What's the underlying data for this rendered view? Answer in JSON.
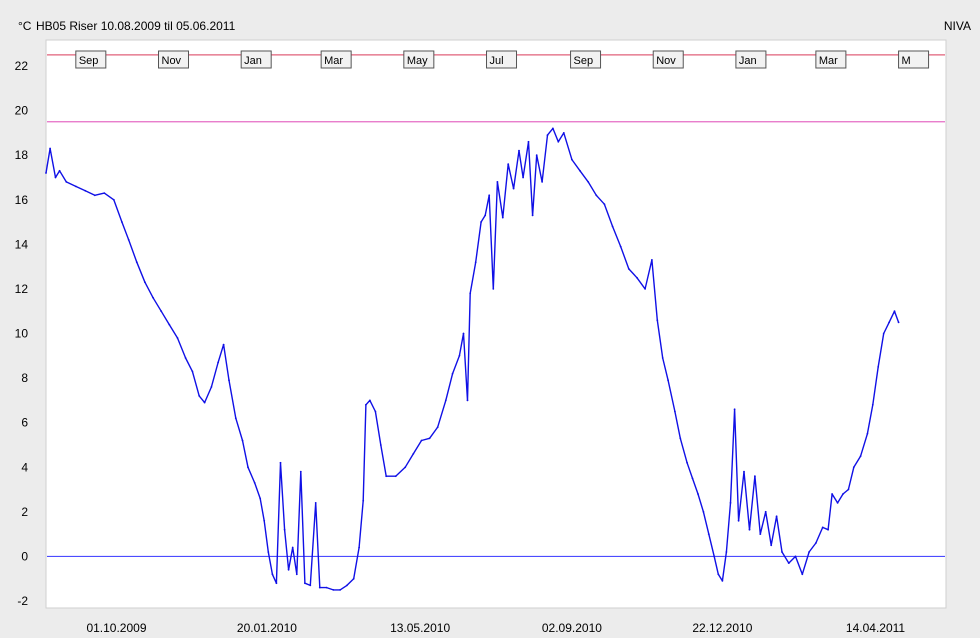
{
  "header": {
    "unit": "°C",
    "title": "HB05 Riser  10.08.2009 til 05.06.2011",
    "source": "NIVA"
  },
  "chart_data": {
    "type": "line",
    "title": "HB05 Riser  10.08.2009 til 05.06.2011",
    "ylabel": "°C",
    "xlabel": "",
    "xlim": [
      "2009-08-10",
      "2011-06-05"
    ],
    "ylim": [
      -2,
      22.5
    ],
    "y_ticks": [
      -2,
      0,
      2,
      4,
      6,
      8,
      10,
      12,
      14,
      16,
      18,
      20,
      22
    ],
    "x_tick_labels": [
      {
        "date": "2009-10-01",
        "label": "01.10.2009"
      },
      {
        "date": "2010-01-20",
        "label": "20.01.2010"
      },
      {
        "date": "2010-05-13",
        "label": "13.05.2010"
      },
      {
        "date": "2010-09-02",
        "label": "02.09.2010"
      },
      {
        "date": "2010-12-22",
        "label": "22.12.2010"
      },
      {
        "date": "2011-04-14",
        "label": "14.04.2011"
      }
    ],
    "month_markers": [
      {
        "date": "2009-09-01",
        "label": "Sep"
      },
      {
        "date": "2009-11-01",
        "label": "Nov"
      },
      {
        "date": "2010-01-01",
        "label": "Jan"
      },
      {
        "date": "2010-03-01",
        "label": "Mar"
      },
      {
        "date": "2010-05-01",
        "label": "May"
      },
      {
        "date": "2010-07-01",
        "label": "Jul"
      },
      {
        "date": "2010-09-01",
        "label": "Sep"
      },
      {
        "date": "2010-11-01",
        "label": "Nov"
      },
      {
        "date": "2011-01-01",
        "label": "Jan"
      },
      {
        "date": "2011-03-01",
        "label": "Mar"
      },
      {
        "date": "2011-05-01",
        "label": "M"
      }
    ],
    "reference_lines": [
      {
        "y": 22.5,
        "color": "#e0607a"
      },
      {
        "y": 19.5,
        "color": "#e46cc4"
      },
      {
        "y": 0,
        "color": "#4c4cff"
      }
    ],
    "series": [
      {
        "color": "#1010e6",
        "points": [
          [
            "2009-08-10",
            17.2
          ],
          [
            "2009-08-13",
            18.3
          ],
          [
            "2009-08-17",
            17.0
          ],
          [
            "2009-08-20",
            17.3
          ],
          [
            "2009-08-25",
            16.8
          ],
          [
            "2009-09-01",
            16.6
          ],
          [
            "2009-09-08",
            16.4
          ],
          [
            "2009-09-15",
            16.2
          ],
          [
            "2009-09-22",
            16.3
          ],
          [
            "2009-09-29",
            16.0
          ],
          [
            "2009-10-05",
            15.0
          ],
          [
            "2009-10-10",
            14.2
          ],
          [
            "2009-10-16",
            13.2
          ],
          [
            "2009-10-22",
            12.3
          ],
          [
            "2009-10-28",
            11.6
          ],
          [
            "2009-11-03",
            11.0
          ],
          [
            "2009-11-09",
            10.4
          ],
          [
            "2009-11-15",
            9.8
          ],
          [
            "2009-11-21",
            8.9
          ],
          [
            "2009-11-26",
            8.3
          ],
          [
            "2009-12-01",
            7.2
          ],
          [
            "2009-12-05",
            6.9
          ],
          [
            "2009-12-10",
            7.6
          ],
          [
            "2009-12-15",
            8.7
          ],
          [
            "2009-12-19",
            9.5
          ],
          [
            "2009-12-23",
            7.9
          ],
          [
            "2009-12-28",
            6.2
          ],
          [
            "2010-01-02",
            5.2
          ],
          [
            "2010-01-06",
            4.0
          ],
          [
            "2010-01-11",
            3.3
          ],
          [
            "2010-01-15",
            2.6
          ],
          [
            "2010-01-18",
            1.6
          ],
          [
            "2010-01-21",
            0.2
          ],
          [
            "2010-01-24",
            -0.8
          ],
          [
            "2010-01-27",
            -1.2
          ],
          [
            "2010-01-30",
            4.2
          ],
          [
            "2010-02-02",
            1.2
          ],
          [
            "2010-02-05",
            -0.6
          ],
          [
            "2010-02-08",
            0.4
          ],
          [
            "2010-02-11",
            -0.8
          ],
          [
            "2010-02-14",
            3.8
          ],
          [
            "2010-02-17",
            -1.2
          ],
          [
            "2010-02-21",
            -1.3
          ],
          [
            "2010-02-25",
            2.4
          ],
          [
            "2010-02-28",
            -1.4
          ],
          [
            "2010-03-05",
            -1.4
          ],
          [
            "2010-03-10",
            -1.5
          ],
          [
            "2010-03-15",
            -1.5
          ],
          [
            "2010-03-20",
            -1.3
          ],
          [
            "2010-03-25",
            -1.0
          ],
          [
            "2010-03-29",
            0.4
          ],
          [
            "2010-04-01",
            2.5
          ],
          [
            "2010-04-03",
            6.8
          ],
          [
            "2010-04-06",
            7.0
          ],
          [
            "2010-04-10",
            6.5
          ],
          [
            "2010-04-14",
            5.0
          ],
          [
            "2010-04-18",
            3.6
          ],
          [
            "2010-04-25",
            3.6
          ],
          [
            "2010-05-02",
            4.0
          ],
          [
            "2010-05-08",
            4.6
          ],
          [
            "2010-05-14",
            5.2
          ],
          [
            "2010-05-20",
            5.3
          ],
          [
            "2010-05-26",
            5.8
          ],
          [
            "2010-06-01",
            7.0
          ],
          [
            "2010-06-06",
            8.2
          ],
          [
            "2010-06-11",
            9.0
          ],
          [
            "2010-06-14",
            10.0
          ],
          [
            "2010-06-17",
            7.0
          ],
          [
            "2010-06-19",
            11.8
          ],
          [
            "2010-06-23",
            13.2
          ],
          [
            "2010-06-27",
            15.0
          ],
          [
            "2010-06-30",
            15.3
          ],
          [
            "2010-07-03",
            16.2
          ],
          [
            "2010-07-06",
            12.0
          ],
          [
            "2010-07-09",
            16.8
          ],
          [
            "2010-07-13",
            15.2
          ],
          [
            "2010-07-17",
            17.6
          ],
          [
            "2010-07-21",
            16.5
          ],
          [
            "2010-07-25",
            18.2
          ],
          [
            "2010-07-28",
            17.0
          ],
          [
            "2010-08-01",
            18.6
          ],
          [
            "2010-08-04",
            15.3
          ],
          [
            "2010-08-07",
            18.0
          ],
          [
            "2010-08-11",
            16.8
          ],
          [
            "2010-08-15",
            18.9
          ],
          [
            "2010-08-19",
            19.2
          ],
          [
            "2010-08-23",
            18.6
          ],
          [
            "2010-08-27",
            19.0
          ],
          [
            "2010-09-02",
            17.8
          ],
          [
            "2010-09-08",
            17.3
          ],
          [
            "2010-09-14",
            16.8
          ],
          [
            "2010-09-20",
            16.2
          ],
          [
            "2010-09-26",
            15.8
          ],
          [
            "2010-10-02",
            14.8
          ],
          [
            "2010-10-08",
            13.9
          ],
          [
            "2010-10-14",
            12.9
          ],
          [
            "2010-10-20",
            12.5
          ],
          [
            "2010-10-26",
            12.0
          ],
          [
            "2010-10-31",
            13.3
          ],
          [
            "2010-11-04",
            10.6
          ],
          [
            "2010-11-08",
            8.9
          ],
          [
            "2010-11-12",
            7.9
          ],
          [
            "2010-11-17",
            6.5
          ],
          [
            "2010-11-21",
            5.3
          ],
          [
            "2010-11-26",
            4.2
          ],
          [
            "2010-11-30",
            3.5
          ],
          [
            "2010-12-04",
            2.8
          ],
          [
            "2010-12-08",
            2.0
          ],
          [
            "2010-12-12",
            1.0
          ],
          [
            "2010-12-16",
            0.0
          ],
          [
            "2010-12-19",
            -0.8
          ],
          [
            "2010-12-22",
            -1.1
          ],
          [
            "2010-12-25",
            0.2
          ],
          [
            "2010-12-28",
            2.4
          ],
          [
            "2010-12-31",
            6.6
          ],
          [
            "2011-01-03",
            1.6
          ],
          [
            "2011-01-07",
            3.8
          ],
          [
            "2011-01-11",
            1.2
          ],
          [
            "2011-01-15",
            3.6
          ],
          [
            "2011-01-19",
            1.0
          ],
          [
            "2011-01-23",
            2.0
          ],
          [
            "2011-01-27",
            0.5
          ],
          [
            "2011-01-31",
            1.8
          ],
          [
            "2011-02-04",
            0.2
          ],
          [
            "2011-02-09",
            -0.3
          ],
          [
            "2011-02-14",
            0.0
          ],
          [
            "2011-02-19",
            -0.8
          ],
          [
            "2011-02-24",
            0.2
          ],
          [
            "2011-03-01",
            0.6
          ],
          [
            "2011-03-06",
            1.3
          ],
          [
            "2011-03-10",
            1.2
          ],
          [
            "2011-03-13",
            2.8
          ],
          [
            "2011-03-17",
            2.4
          ],
          [
            "2011-03-21",
            2.8
          ],
          [
            "2011-03-25",
            3.0
          ],
          [
            "2011-03-29",
            4.0
          ],
          [
            "2011-04-03",
            4.5
          ],
          [
            "2011-04-08",
            5.5
          ],
          [
            "2011-04-12",
            6.8
          ],
          [
            "2011-04-16",
            8.5
          ],
          [
            "2011-04-20",
            10.0
          ],
          [
            "2011-04-24",
            10.5
          ],
          [
            "2011-04-28",
            11.0
          ],
          [
            "2011-05-01",
            10.5
          ]
        ]
      }
    ]
  }
}
